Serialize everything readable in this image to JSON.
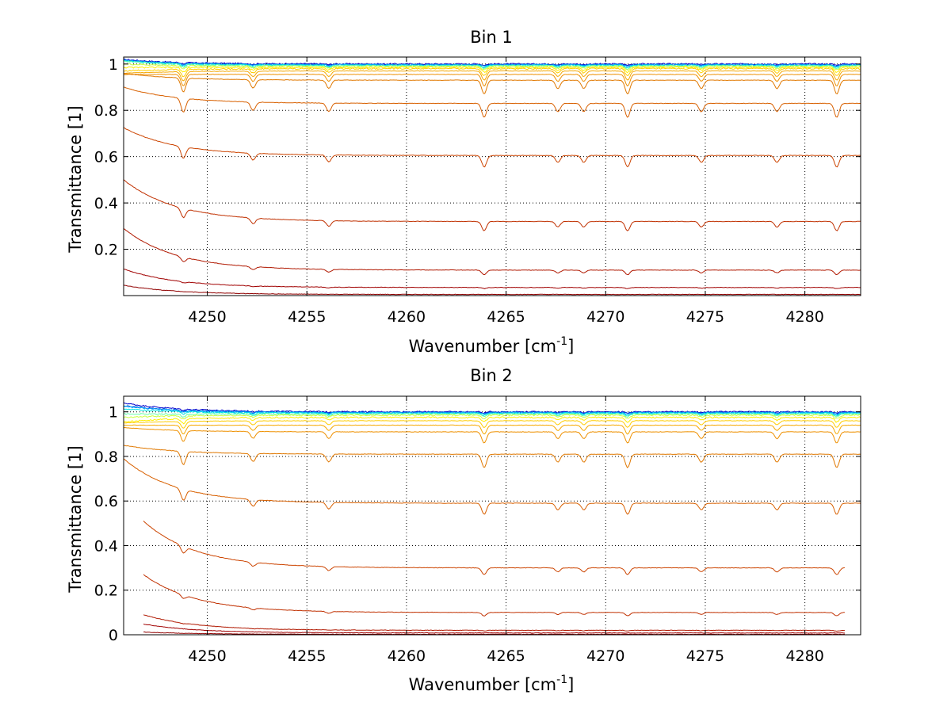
{
  "chart_data": [
    {
      "type": "line",
      "title": "Bin 1",
      "xlabel": "Wavenumber [cm",
      "xlabel_sup": "-1",
      "xlabel_end": "]",
      "ylabel": "Transmittance [1]",
      "xlim": [
        4245.8,
        4282.8
      ],
      "ylim": [
        0,
        1.03
      ],
      "xticks": [
        "4250",
        "4255",
        "4260",
        "4265",
        "4270",
        "4275",
        "4280"
      ],
      "yticks": [
        "0.2",
        "0.4",
        "0.6",
        "0.8",
        "1"
      ],
      "grid": true,
      "colors": [
        "#0000cc",
        "#0055dd",
        "#00aaff",
        "#00e5e5",
        "#66ffaa",
        "#ccff44",
        "#ffee00",
        "#ffcc00",
        "#f5a800",
        "#ee9000",
        "#e07800",
        "#d86000",
        "#cc4400",
        "#c03000",
        "#b01800",
        "#a00000",
        "#900000"
      ],
      "x_start": 4245.8,
      "x_end": 4282.8,
      "series": [
        {
          "base": 1.0,
          "startExtra": 0.02,
          "depth": 0.005
        },
        {
          "base": 0.998,
          "startExtra": 0.02,
          "depth": 0.006
        },
        {
          "base": 0.996,
          "startExtra": 0.02,
          "depth": 0.008
        },
        {
          "base": 0.994,
          "startExtra": 0.02,
          "depth": 0.01
        },
        {
          "base": 0.992,
          "startExtra": 0.02,
          "depth": 0.012
        },
        {
          "base": 0.99,
          "startExtra": 0.01,
          "depth": 0.015
        },
        {
          "base": 0.985,
          "startExtra": 0.0,
          "depth": 0.02
        },
        {
          "base": 0.98,
          "startExtra": -0.01,
          "depth": 0.03
        },
        {
          "base": 0.97,
          "startExtra": -0.01,
          "depth": 0.04
        },
        {
          "base": 0.955,
          "startExtra": 0.0,
          "depth": 0.05
        },
        {
          "base": 0.93,
          "startExtra": 0.03,
          "depth": 0.06
        },
        {
          "base": 0.83,
          "startExtra": 0.07,
          "depth": 0.06
        },
        {
          "base": 0.605,
          "startExtra": 0.12,
          "depth": 0.05
        },
        {
          "base": 0.32,
          "startExtra": 0.18,
          "depth": 0.04
        },
        {
          "base": 0.11,
          "startExtra": 0.18,
          "depth": 0.02
        },
        {
          "base": 0.035,
          "startExtra": 0.08,
          "depth": 0.005
        },
        {
          "base": 0.005,
          "startExtra": 0.04,
          "depth": 0.0
        }
      ]
    },
    {
      "type": "line",
      "title": "Bin 2",
      "xlabel": "Wavenumber [cm",
      "xlabel_sup": "-1",
      "xlabel_end": "]",
      "ylabel": "Transmittance [1]",
      "xlim": [
        4245.8,
        4282.8
      ],
      "ylim": [
        0,
        1.07
      ],
      "xticks": [
        "4250",
        "4255",
        "4260",
        "4265",
        "4270",
        "4275",
        "4280"
      ],
      "yticks": [
        "0",
        "0.2",
        "0.4",
        "0.6",
        "0.8",
        "1"
      ],
      "grid": true,
      "colors": [
        "#0000cc",
        "#0055dd",
        "#00aaff",
        "#00e5e5",
        "#66ffaa",
        "#ccff44",
        "#ffee00",
        "#ffcc00",
        "#f5a800",
        "#ee9000",
        "#e07800",
        "#d86000",
        "#cc4400",
        "#c03000",
        "#b01800",
        "#a00000",
        "#900000"
      ],
      "x_start": 4245.8,
      "x_end": 4282.8,
      "series": [
        {
          "base": 1.0,
          "startExtra": 0.04,
          "depth": 0.005,
          "start": 4245.8,
          "end": 4282.8
        },
        {
          "base": 0.998,
          "startExtra": 0.03,
          "depth": 0.006,
          "start": 4245.8,
          "end": 4282.8
        },
        {
          "base": 0.996,
          "startExtra": 0.03,
          "depth": 0.008,
          "start": 4245.8,
          "end": 4282.8
        },
        {
          "base": 0.994,
          "startExtra": 0.02,
          "depth": 0.01,
          "start": 4245.8,
          "end": 4282.8
        },
        {
          "base": 0.99,
          "startExtra": 0.0,
          "depth": 0.012,
          "start": 4245.8,
          "end": 4282.8
        },
        {
          "base": 0.985,
          "startExtra": -0.01,
          "depth": 0.015,
          "start": 4245.8,
          "end": 4282.8
        },
        {
          "base": 0.975,
          "startExtra": -0.02,
          "depth": 0.02,
          "start": 4245.8,
          "end": 4282.8
        },
        {
          "base": 0.96,
          "startExtra": -0.01,
          "depth": 0.03,
          "start": 4245.8,
          "end": 4282.8
        },
        {
          "base": 0.94,
          "startExtra": 0.0,
          "depth": 0.04,
          "start": 4245.8,
          "end": 4282.8
        },
        {
          "base": 0.91,
          "startExtra": 0.02,
          "depth": 0.05,
          "start": 4245.8,
          "end": 4282.8
        },
        {
          "base": 0.81,
          "startExtra": 0.04,
          "depth": 0.06,
          "start": 4245.8,
          "end": 4282.8
        },
        {
          "base": 0.59,
          "startExtra": 0.2,
          "depth": 0.05,
          "start": 4245.8,
          "end": 4282.8
        },
        {
          "base": 0.3,
          "startExtra": 0.21,
          "depth": 0.03,
          "start": 4246.8,
          "end": 4282.0
        },
        {
          "base": 0.1,
          "startExtra": 0.17,
          "depth": 0.015,
          "start": 4246.8,
          "end": 4282.0
        },
        {
          "base": 0.02,
          "startExtra": 0.07,
          "depth": 0.003,
          "start": 4246.8,
          "end": 4282.0
        },
        {
          "base": 0.008,
          "startExtra": 0.04,
          "depth": 0.0,
          "start": 4246.8,
          "end": 4282.0
        },
        {
          "base": 0.002,
          "startExtra": 0.01,
          "depth": 0.0,
          "start": 4246.8,
          "end": 4282.0
        }
      ]
    }
  ],
  "absorption_lines": [
    4248.8,
    4252.3,
    4256.1,
    4263.9,
    4267.6,
    4268.9,
    4271.1,
    4274.8,
    4278.6,
    4281.6
  ]
}
